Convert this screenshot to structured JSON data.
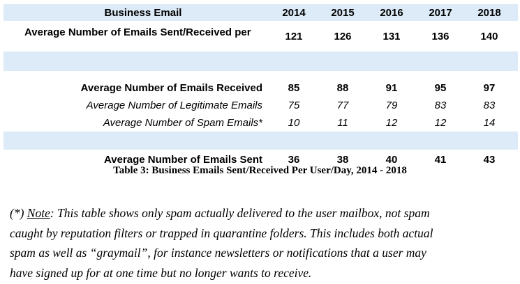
{
  "table": {
    "header": {
      "label": "Business Email",
      "years": [
        "2014",
        "2015",
        "2016",
        "2017",
        "2018"
      ]
    },
    "rows": [
      {
        "label": "Average Number of Emails Sent/Received per",
        "values": [
          "121",
          "126",
          "131",
          "136",
          "140"
        ]
      },
      {
        "label": "Average Number of Emails Received",
        "values": [
          "85",
          "88",
          "91",
          "95",
          "97"
        ]
      },
      {
        "label": "Average Number of Legitimate Emails",
        "values": [
          "75",
          "77",
          "79",
          "83",
          "83"
        ]
      },
      {
        "label": "Average Number of Spam Emails*",
        "values": [
          "10",
          "11",
          "12",
          "12",
          "14"
        ]
      },
      {
        "label": "Average Number of Emails Sent",
        "values": [
          "36",
          "38",
          "40",
          "41",
          "43"
        ]
      }
    ],
    "caption": "Table 3: Business Emails Sent/Received Per User/Day, 2014 - 2018"
  },
  "footnote": {
    "prefix": "(*) ",
    "label": "Note",
    "text": ": This table shows only spam actually delivered to the user mailbox, not spam\ncaught by reputation filters or trapped in quarantine folders. This includes both actual\nspam as well as “graymail”, for instance newsletters or notifications that a user may\nhave signed up for at one time but no longer wants to receive."
  },
  "colors": {
    "band": "#dcebf7"
  }
}
